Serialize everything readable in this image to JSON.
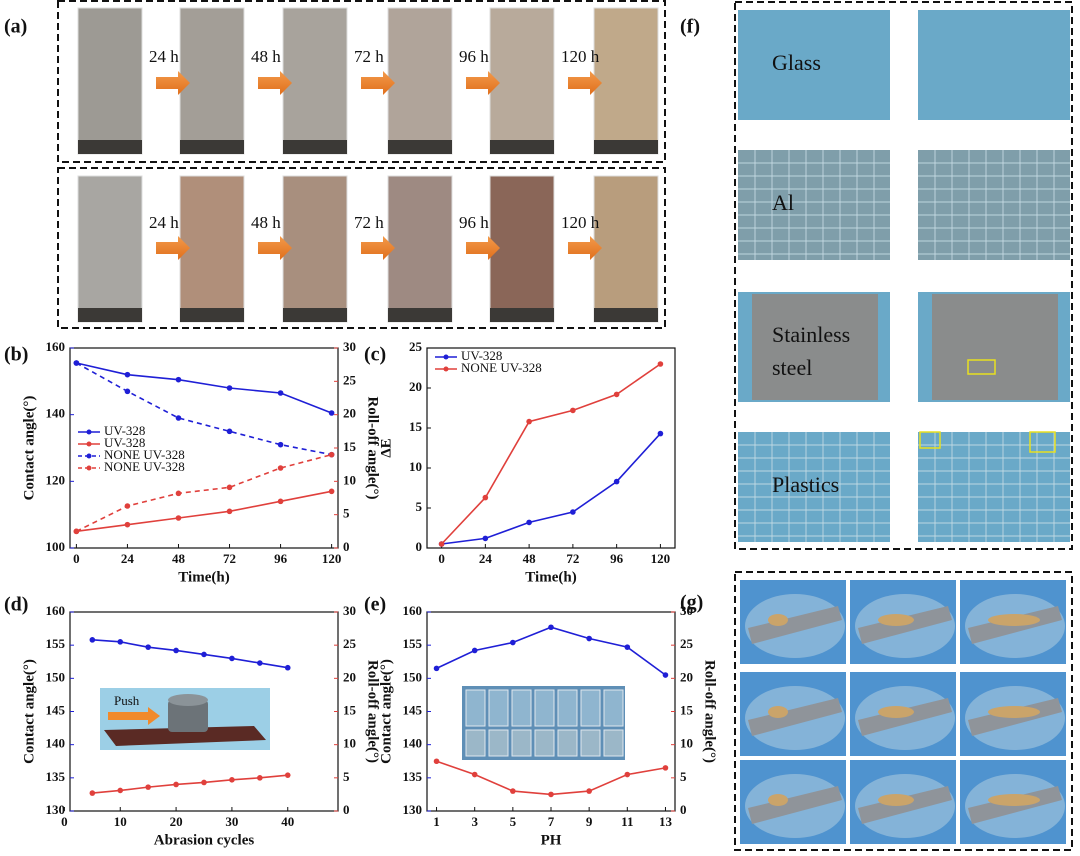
{
  "panels": {
    "a": "(a)",
    "f": "(f)",
    "g": "(g)"
  },
  "a_times": [
    "24 h",
    "48 h",
    "72 h",
    "96 h",
    "120 h"
  ],
  "f_labels": [
    [
      "Glass"
    ],
    [
      "Al"
    ],
    [
      "Stainless",
      "steel"
    ],
    [
      "Plastics"
    ]
  ],
  "inset_d": "Push",
  "chart_data": [
    {
      "type": "line",
      "label": "(b)",
      "xlabel": "Time(h)",
      "ylabel": "Contact angle(°)",
      "y2label": "Roll-off angle(°)",
      "ylabel_color": "#1f1fd6",
      "y2label_color": "#e0403c",
      "x": [
        0,
        24,
        48,
        72,
        96,
        120
      ],
      "xlim": [
        -3,
        123
      ],
      "xticks": [
        0,
        24,
        48,
        72,
        96,
        120
      ],
      "ylim": [
        100,
        160
      ],
      "yticks": [
        100,
        120,
        140,
        160
      ],
      "y2lim": [
        0,
        30
      ],
      "y2ticks": [
        0,
        5,
        10,
        15,
        20,
        25,
        30
      ],
      "legend": "center left",
      "series": [
        {
          "name": "UV-328",
          "color": "#1f1fd6",
          "dash": false,
          "values": [
            155.5,
            152,
            150.5,
            148,
            146.5,
            140.5
          ]
        },
        {
          "name": "UV-328",
          "color": "#e0403c",
          "dash": false,
          "axis": "y2",
          "values": [
            2.5,
            3.5,
            4.5,
            5.5,
            7,
            8.5
          ]
        },
        {
          "name": "NONE UV-328",
          "color": "#1f1fd6",
          "dash": true,
          "values": [
            155.5,
            147,
            139,
            135,
            131,
            128
          ]
        },
        {
          "name": "NONE UV-328",
          "color": "#e0403c",
          "dash": true,
          "axis": "y2",
          "values": [
            2.5,
            6.3,
            8.2,
            9.1,
            12,
            14
          ]
        }
      ]
    },
    {
      "type": "line",
      "label": "(c)",
      "xlabel": "Time(h)",
      "ylabel": "ΔE",
      "x": [
        0,
        24,
        48,
        72,
        96,
        120
      ],
      "xlim": [
        -8,
        128
      ],
      "xticks": [
        0,
        24,
        48,
        72,
        96,
        120
      ],
      "ylim": [
        0,
        25
      ],
      "yticks": [
        0,
        5,
        10,
        15,
        20,
        25
      ],
      "legend": "upper left",
      "series": [
        {
          "name": "UV-328",
          "color": "#1f1fd6",
          "dash": false,
          "values": [
            0.5,
            1.2,
            3.2,
            4.5,
            8.3,
            14.3
          ]
        },
        {
          "name": "NONE UV-328",
          "color": "#e0403c",
          "dash": false,
          "values": [
            0.5,
            6.3,
            15.8,
            17.2,
            19.2,
            23
          ]
        }
      ]
    },
    {
      "type": "line",
      "label": "(d)",
      "xlabel": "Abrasion cycles",
      "ylabel": "Contact angle(°)",
      "y2label": "Roll-off angle(°)",
      "ylabel_color": "#1f1fd6",
      "y2label_color": "#e0403c",
      "x": [
        5,
        10,
        15,
        20,
        25,
        30,
        35,
        40
      ],
      "xlim": [
        1,
        49
      ],
      "xticks": [
        0,
        10,
        20,
        30,
        40
      ],
      "ylim": [
        130,
        160
      ],
      "yticks": [
        130,
        135,
        140,
        145,
        150,
        155,
        160
      ],
      "y2lim": [
        0,
        30
      ],
      "y2ticks": [
        0,
        5,
        10,
        15,
        20,
        25,
        30
      ],
      "series": [
        {
          "name": null,
          "color": "#1f1fd6",
          "dash": false,
          "values": [
            155.8,
            155.5,
            154.7,
            154.2,
            153.6,
            153,
            152.3,
            151.6
          ]
        },
        {
          "name": null,
          "color": "#e0403c",
          "dash": false,
          "axis": "y2",
          "values": [
            2.7,
            3.1,
            3.6,
            4,
            4.3,
            4.7,
            5,
            5.4
          ]
        }
      ]
    },
    {
      "type": "line",
      "label": "(e)",
      "xlabel": "PH",
      "ylabel": "Contact angle(°)",
      "y2label": "Roll-off angle(°)",
      "ylabel_color": "#1f1fd6",
      "y2label_color": "#e0403c",
      "x": [
        1,
        3,
        5,
        7,
        9,
        11,
        13
      ],
      "xlim": [
        0.5,
        13.5
      ],
      "xticks": [
        1,
        3,
        5,
        7,
        9,
        11,
        13
      ],
      "ylim": [
        130,
        160
      ],
      "yticks": [
        130,
        135,
        140,
        145,
        150,
        155,
        160
      ],
      "y2lim": [
        0,
        30
      ],
      "y2ticks": [
        0,
        5,
        10,
        15,
        20,
        25,
        30
      ],
      "series": [
        {
          "name": null,
          "color": "#1f1fd6",
          "dash": false,
          "values": [
            151.5,
            154.2,
            155.4,
            157.7,
            156,
            154.7,
            150.5
          ]
        },
        {
          "name": null,
          "color": "#e0403c",
          "dash": false,
          "axis": "y2",
          "values": [
            7.5,
            5.5,
            3,
            2.5,
            3,
            5.5,
            6.5
          ]
        }
      ]
    }
  ]
}
